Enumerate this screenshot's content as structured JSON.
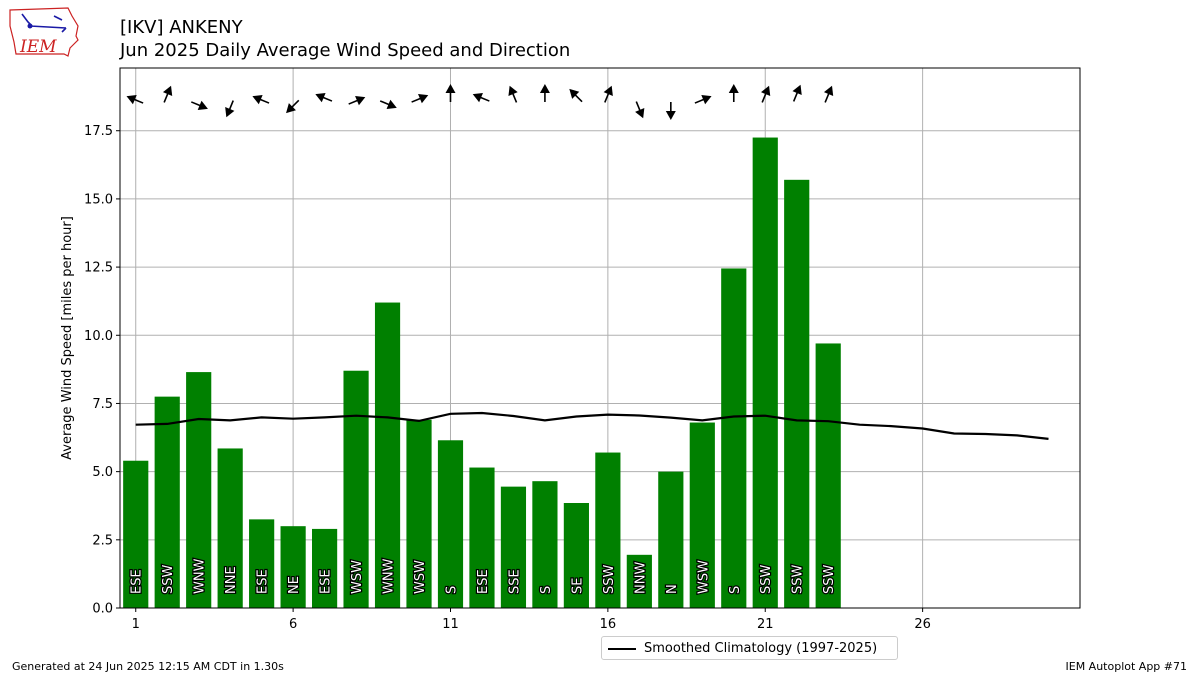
{
  "header": {
    "logo_text": "IEM",
    "title_line1": "[IKV] ANKENY",
    "title_line2": "Jun 2025 Daily Average Wind Speed and Direction"
  },
  "footer": {
    "generated": "Generated at 24 Jun 2025 12:15 AM CDT in 1.30s",
    "app": "IEM Autoplot App #71"
  },
  "legend": {
    "climo_label": "Smoothed Climatology (1997-2025)"
  },
  "colors": {
    "bar": "#008000",
    "climo_line": "#000000",
    "grid": "#b0b0b0",
    "logo_red": "#cc2222",
    "logo_blue": "#1a1aa6"
  },
  "chart_data": {
    "type": "bar",
    "ylabel": "Average Wind Speed [miles per hour]",
    "xlim": [
      0.5,
      31
    ],
    "ylim": [
      0,
      19.8
    ],
    "xticks": [
      1,
      6,
      11,
      16,
      21,
      26
    ],
    "yticks": [
      0.0,
      2.5,
      5.0,
      7.5,
      10.0,
      12.5,
      15.0,
      17.5
    ],
    "ytick_labels": [
      "0.0",
      "2.5",
      "5.0",
      "7.5",
      "10.0",
      "12.5",
      "15.0",
      "17.5"
    ],
    "grid": true,
    "legend_position": "below",
    "days": [
      1,
      2,
      3,
      4,
      5,
      6,
      7,
      8,
      9,
      10,
      11,
      12,
      13,
      14,
      15,
      16,
      17,
      18,
      19,
      20,
      21,
      22,
      23
    ],
    "values": [
      5.4,
      7.75,
      8.65,
      5.85,
      3.25,
      3.0,
      2.9,
      8.7,
      11.2,
      6.9,
      6.15,
      5.15,
      4.45,
      4.65,
      3.85,
      5.7,
      1.95,
      5.0,
      6.8,
      12.45,
      17.25,
      15.7,
      9.7
    ],
    "directions": [
      "ESE",
      "SSW",
      "WNW",
      "NNE",
      "ESE",
      "NE",
      "ESE",
      "WSW",
      "WNW",
      "WSW",
      "S",
      "ESE",
      "SSE",
      "S",
      "SE",
      "SSW",
      "NNW",
      "N",
      "WSW",
      "S",
      "SSW",
      "SSW",
      "SSW"
    ],
    "climatology": {
      "days": [
        1,
        2,
        3,
        4,
        5,
        6,
        7,
        8,
        9,
        10,
        11,
        12,
        13,
        14,
        15,
        16,
        17,
        18,
        19,
        20,
        21,
        22,
        23,
        24,
        25,
        26,
        27,
        28,
        29,
        30
      ],
      "values": [
        6.72,
        6.75,
        6.93,
        6.88,
        6.99,
        6.94,
        6.99,
        7.05,
        6.99,
        6.86,
        7.12,
        7.15,
        7.04,
        6.88,
        7.02,
        7.09,
        7.06,
        6.98,
        6.88,
        7.02,
        7.05,
        6.88,
        6.85,
        6.72,
        6.67,
        6.58,
        6.4,
        6.38,
        6.33,
        6.2
      ]
    }
  }
}
